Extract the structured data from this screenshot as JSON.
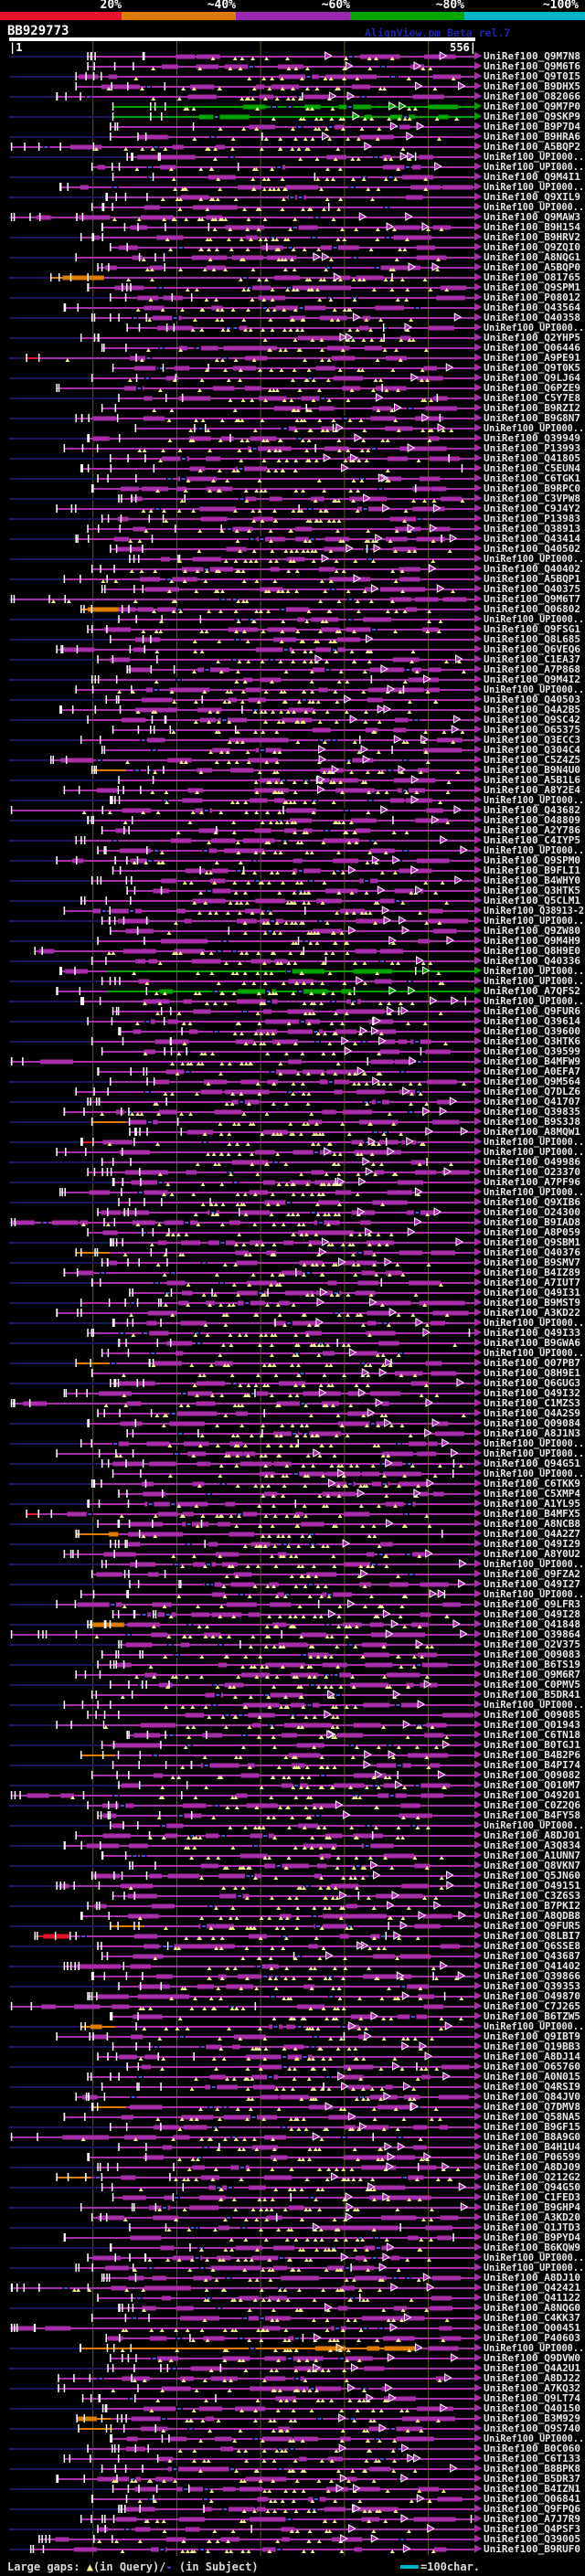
{
  "header": {
    "query_id": "BB929773",
    "app_title": "AlignView.pm Beta rel.7",
    "ruler_start_label": "|1",
    "ruler_end_label": "556|",
    "query_length": 556,
    "gridline_positions": [
      100,
      200,
      300,
      400,
      500
    ]
  },
  "scale": {
    "labels": [
      "20%",
      "~40%",
      "~60%",
      "~80%",
      "~100%"
    ],
    "segment_colors": [
      "#E8112D",
      "#DE7B00",
      "#9B26B2",
      "#00A400",
      "#00B4C8"
    ]
  },
  "legend": {
    "large_gaps_label": "Large gaps: ",
    "gap_query_glyph": "▲",
    "in_query_label": "(in Query)/",
    "gap_subject_glyph": "-",
    "in_subject_label": " (in Subject)",
    "scale_bar_label": "=100char."
  },
  "colors": {
    "background": "#000000",
    "magenta": "#A82DA8",
    "green": "#00A400",
    "orange": "#DE7B00",
    "red": "#E8112D",
    "cyan": "#00B4C8",
    "navy_guide": "#191958",
    "olive_gridline": "#5C5C14",
    "gap_triangle_yellow": "#F0EC8E",
    "subject_gap_blue": "#5050E0",
    "tick_white": "#FFFFFF",
    "label_text": "#E8E8E8"
  },
  "rows": {
    "prefix": "UniRef100_",
    "color_codes": {
      "0": "magenta",
      "1": "green",
      "2": "magenta-then-green",
      "3": "orange-long",
      "4": "orange-lead",
      "5": "red-lead"
    },
    "item_format": [
      "subject_id",
      "alignment_start_query_pos",
      "color_code"
    ],
    "items": [
      [
        "Q9M7N8",
        93,
        0
      ],
      [
        "Q9M6T6",
        93,
        0
      ],
      [
        "Q9T0I5",
        79,
        0
      ],
      [
        "B9DHX5",
        79,
        0
      ],
      [
        "O82066",
        56,
        0
      ],
      [
        "Q9M7P0",
        123,
        1
      ],
      [
        "Q9SKP9",
        123,
        1
      ],
      [
        "B9P7D4",
        120,
        0
      ],
      [
        "B9HRA6",
        120,
        0
      ],
      [
        "A5BQP2",
        2,
        0
      ],
      [
        "UPI000..",
        140,
        0
      ],
      [
        "UPI000..",
        98,
        0
      ],
      [
        "Q9M4I1",
        123,
        0
      ],
      [
        "UPI000..",
        60,
        0
      ],
      [
        "Q9XIL9",
        115,
        0
      ],
      [
        "UPI000..",
        98,
        0
      ],
      [
        "Q9MAW3",
        2,
        0
      ],
      [
        "B9H154",
        110,
        0
      ],
      [
        "B9HRV2",
        85,
        0
      ],
      [
        "Q9ZQI0",
        120,
        0
      ],
      [
        "A8NQG1",
        79,
        0
      ],
      [
        "A5BQP0",
        105,
        0
      ],
      [
        "O81765",
        49,
        4
      ],
      [
        "Q9SPM1",
        93,
        0
      ],
      [
        "P08012",
        120,
        0
      ],
      [
        "Q43564",
        65,
        0
      ],
      [
        "Q40358",
        98,
        0
      ],
      [
        "UPI000..",
        140,
        0
      ],
      [
        "Q2YHP5",
        85,
        0
      ],
      [
        "Q06446",
        110,
        0
      ],
      [
        "A9PE91",
        20,
        5
      ],
      [
        "Q9T0K5",
        123,
        0
      ],
      [
        "Q9LJ64",
        98,
        0
      ],
      [
        "Q6PZE9",
        56,
        0
      ],
      [
        "C5Y7E8",
        130,
        0
      ],
      [
        "B9RZI2",
        110,
        0
      ],
      [
        "B9G8N7",
        79,
        0
      ],
      [
        "UPI000..",
        150,
        0
      ],
      [
        "Q39949",
        93,
        0
      ],
      [
        "P13993",
        65,
        0
      ],
      [
        "Q41805",
        120,
        0
      ],
      [
        "C5EUN4",
        85,
        0
      ],
      [
        "C6TGK1",
        105,
        0
      ],
      [
        "B9RPC0",
        98,
        0
      ],
      [
        "C3VPW8",
        130,
        0
      ],
      [
        "C9J4Y2",
        56,
        0
      ],
      [
        "P13983",
        110,
        0
      ],
      [
        "Q38913",
        93,
        0
      ],
      [
        "Q43414",
        79,
        0
      ],
      [
        "Q40502",
        120,
        0
      ],
      [
        "UPI000..",
        143,
        0
      ],
      [
        "Q40402",
        98,
        0
      ],
      [
        "A5BQP1",
        65,
        0
      ],
      [
        "Q40375",
        110,
        0
      ],
      [
        "Q9M6T7",
        2,
        0
      ],
      [
        "Q06802",
        85,
        4
      ],
      [
        "UPI000..",
        130,
        0
      ],
      [
        "Q9FSG1",
        93,
        0
      ],
      [
        "Q8L685",
        120,
        0
      ],
      [
        "Q6VEQ6",
        56,
        0
      ],
      [
        "C1EA37",
        105,
        0
      ],
      [
        "A7P868",
        140,
        0
      ],
      [
        "Q9M4I2",
        98,
        0
      ],
      [
        "UPI000..",
        79,
        0
      ],
      [
        "Q40503",
        115,
        0
      ],
      [
        "Q4A2B5",
        60,
        0
      ],
      [
        "Q9SC42",
        93,
        0
      ],
      [
        "O65375",
        123,
        0
      ],
      [
        "Q3ECC3",
        85,
        0
      ],
      [
        "Q304C4",
        110,
        0
      ],
      [
        "C5Z4Z5",
        49,
        0
      ],
      [
        "B9N4U0",
        98,
        4
      ],
      [
        "A5B1L6",
        130,
        0
      ],
      [
        "A8Y2E4",
        65,
        0
      ],
      [
        "UPI000..",
        120,
        0
      ],
      [
        "Q43682",
        2,
        0
      ],
      [
        "O48809",
        93,
        0
      ],
      [
        "A2Y786",
        110,
        0
      ],
      [
        "C4IYP5",
        79,
        0
      ],
      [
        "UPI000..",
        105,
        0
      ],
      [
        "Q9SPM0",
        56,
        0
      ],
      [
        "B9FLI1",
        123,
        0
      ],
      [
        "B4WHY0",
        98,
        0
      ],
      [
        "Q3HTK5",
        140,
        0
      ],
      [
        "Q5CLM1",
        85,
        0
      ],
      [
        "Q38913-2",
        65,
        0
      ],
      [
        "UPI000..",
        110,
        0
      ],
      [
        "Q9ZW80",
        120,
        0
      ],
      [
        "Q9M4H9",
        105,
        0
      ],
      [
        "Q8H9E0",
        30,
        0
      ],
      [
        "Q40336",
        98,
        0
      ],
      [
        "UPI000..",
        60,
        2
      ],
      [
        "UPI000..",
        110,
        0
      ],
      [
        "A7QFS2",
        56,
        2
      ],
      [
        "UPI000..",
        85,
        0
      ],
      [
        "Q9FUR6",
        123,
        0
      ],
      [
        "Q39614",
        93,
        0
      ],
      [
        "Q39600",
        130,
        0
      ],
      [
        "Q3HTK6",
        98,
        0
      ],
      [
        "Q39599",
        110,
        0
      ],
      [
        "B4MFW9",
        2,
        0
      ],
      [
        "A0EFA7",
        105,
        0
      ],
      [
        "Q9M564",
        120,
        0
      ],
      [
        "Q7DLZ6",
        79,
        0
      ],
      [
        "Q41707",
        93,
        0
      ],
      [
        "Q39835",
        65,
        0
      ],
      [
        "B9S3J8",
        98,
        4
      ],
      [
        "A8MQW1",
        143,
        0
      ],
      [
        "UPI000..",
        85,
        5
      ],
      [
        "UPI000..",
        56,
        0
      ],
      [
        "O49986",
        110,
        0
      ],
      [
        "O23370",
        93,
        0
      ],
      [
        "A7PF96",
        123,
        0
      ],
      [
        "UPI000..",
        60,
        0
      ],
      [
        "Q9XIB6",
        130,
        0
      ],
      [
        "O24300",
        105,
        0
      ],
      [
        "B9IAD8",
        2,
        0
      ],
      [
        "A8P059",
        93,
        0
      ],
      [
        "Q9SBM1",
        120,
        0
      ],
      [
        "Q40376",
        79,
        4
      ],
      [
        "B9SMV7",
        110,
        0
      ],
      [
        "B4IZ89",
        65,
        0
      ],
      [
        "A7IUT7",
        98,
        0
      ],
      [
        "Q49I31",
        143,
        0
      ],
      [
        "B9MST9",
        85,
        0
      ],
      [
        "A3KD22",
        56,
        0
      ],
      [
        "UPI000..",
        123,
        0
      ],
      [
        "Q49I33",
        93,
        0
      ],
      [
        "B9GWA6",
        130,
        0
      ],
      [
        "UPI000..",
        110,
        0
      ],
      [
        "Q07PB7",
        79,
        4
      ],
      [
        "Q8H9E1",
        98,
        0
      ],
      [
        "Q6GUG3",
        120,
        0
      ],
      [
        "Q49I32",
        65,
        0
      ],
      [
        "C1MZS3",
        2,
        0
      ],
      [
        "Q4A2S9",
        105,
        0
      ],
      [
        "Q09084",
        93,
        0
      ],
      [
        "A8J1N3",
        140,
        0
      ],
      [
        "UPI000..",
        85,
        0
      ],
      [
        "UPI000..",
        56,
        0
      ],
      [
        "Q94G51",
        110,
        0
      ],
      [
        "UPI000..",
        123,
        0
      ],
      [
        "C6TKK9",
        98,
        0
      ],
      [
        "C5XMP4",
        130,
        0
      ],
      [
        "A1YL95",
        93,
        0
      ],
      [
        "B4MFX5",
        20,
        5
      ],
      [
        "A8NCB8",
        105,
        0
      ],
      [
        "Q4A2Z7",
        79,
        4
      ],
      [
        "Q49I29",
        120,
        0
      ],
      [
        "A8Y0U2",
        65,
        0
      ],
      [
        "UPI000..",
        110,
        0
      ],
      [
        "Q9FZA2",
        98,
        0
      ],
      [
        "Q49I27",
        143,
        0
      ],
      [
        "UPI000..",
        85,
        0
      ],
      [
        "Q9LFR3",
        56,
        0
      ],
      [
        "Q49I28",
        123,
        0
      ],
      [
        "Q41848",
        93,
        4
      ],
      [
        "Q39864",
        2,
        0
      ],
      [
        "Q2V375",
        130,
        0
      ],
      [
        "Q09083",
        110,
        0
      ],
      [
        "B6TS19",
        105,
        0
      ],
      [
        "Q9M6R7",
        79,
        0
      ],
      [
        "C0PMV5",
        120,
        0
      ],
      [
        "B5DR41",
        98,
        0
      ],
      [
        "UPI000..",
        65,
        0
      ],
      [
        "Q09085",
        93,
        0
      ],
      [
        "Q01943",
        56,
        0
      ],
      [
        "C6TN18",
        140,
        0
      ],
      [
        "B0TGJ1",
        110,
        0
      ],
      [
        "B4B2P6",
        85,
        4
      ],
      [
        "B4PI74",
        123,
        0
      ],
      [
        "Q09082",
        98,
        0
      ],
      [
        "Q010M7",
        130,
        0
      ],
      [
        "O49201",
        2,
        0
      ],
      [
        "C0Z2Q6",
        93,
        0
      ],
      [
        "B4FY58",
        105,
        0
      ],
      [
        "UPI000..",
        120,
        0
      ],
      [
        "A8DJ01",
        79,
        0
      ],
      [
        "A3Q834",
        65,
        0
      ],
      [
        "A1UNN7",
        110,
        0
      ],
      [
        "Q8VKN7",
        143,
        0
      ],
      [
        "Q5JN60",
        98,
        0
      ],
      [
        "O49151",
        56,
        0
      ],
      [
        "C3Z6S3",
        123,
        0
      ],
      [
        "B7PKI2",
        93,
        0
      ],
      [
        "A8QDB8",
        85,
        0
      ],
      [
        "Q9FUR5",
        120,
        4
      ],
      [
        "Q8LBI7",
        30,
        5
      ],
      [
        "Q6SSE8",
        105,
        0
      ],
      [
        "Q43687",
        110,
        0
      ],
      [
        "Q41402",
        65,
        0
      ],
      [
        "Q39866",
        98,
        0
      ],
      [
        "Q39353",
        130,
        0
      ],
      [
        "O49870",
        93,
        0
      ],
      [
        "C7J265",
        2,
        0
      ],
      [
        "B6TZW5",
        120,
        0
      ],
      [
        "UPI000..",
        85,
        4
      ],
      [
        "Q9IBT9",
        56,
        0
      ],
      [
        "Q19BB3",
        123,
        0
      ],
      [
        "A8DJ14",
        105,
        0
      ],
      [
        "O65760",
        140,
        0
      ],
      [
        "A0N015",
        93,
        0
      ],
      [
        "Q4RSI9",
        110,
        0
      ],
      [
        "Q84JV0",
        79,
        0
      ],
      [
        "Q7DMV8",
        98,
        4
      ],
      [
        "Q58NA5",
        65,
        0
      ],
      [
        "B9GF15",
        120,
        0
      ],
      [
        "B8A9G0",
        2,
        0
      ],
      [
        "B4H1U4",
        130,
        0
      ],
      [
        "P06599",
        93,
        0
      ],
      [
        "A8DJ09",
        105,
        0
      ],
      [
        "Q212G2",
        56,
        4
      ],
      [
        "Q94G50",
        110,
        0
      ],
      [
        "C1FED3",
        123,
        0
      ],
      [
        "B9GHP4",
        85,
        0
      ],
      [
        "A3KD20",
        98,
        0
      ],
      [
        "Q1JTD3",
        143,
        0
      ],
      [
        "B9PYD4",
        65,
        0
      ],
      [
        "B6KQW9",
        120,
        0
      ],
      [
        "UPI000..",
        93,
        0
      ],
      [
        "UPI000..",
        79,
        0
      ],
      [
        "A8DJ10",
        110,
        0
      ],
      [
        "Q42421",
        2,
        0
      ],
      [
        "Q41122",
        105,
        0
      ],
      [
        "A8NQG0",
        130,
        0
      ],
      [
        "C4KK37",
        98,
        0
      ],
      [
        "Q00451",
        2,
        0
      ],
      [
        "P40603",
        115,
        0
      ],
      [
        "UPI000..",
        84,
        3
      ],
      [
        "Q9DVW0",
        120,
        0
      ],
      [
        "Q4A2U1",
        117,
        0
      ],
      [
        "A8DJ22",
        58,
        0
      ],
      [
        "A7KQ32",
        58,
        0
      ],
      [
        "Q9LT74",
        87,
        0
      ],
      [
        "Q40150",
        111,
        0
      ],
      [
        "B3M929",
        80,
        4
      ],
      [
        "Q9S740",
        82,
        4
      ],
      [
        "UPI000..",
        120,
        0
      ],
      [
        "B0C060",
        93,
        0
      ],
      [
        "C6T133",
        65,
        0
      ],
      [
        "B8BPK8",
        110,
        0
      ],
      [
        "B5DR37",
        56,
        0
      ],
      [
        "B4IZN1",
        123,
        0
      ],
      [
        "Q06841",
        98,
        0
      ],
      [
        "Q9FPQ6",
        130,
        0
      ],
      [
        "A7J7R9",
        85,
        0
      ],
      [
        "Q4PSF3",
        105,
        0
      ],
      [
        "Q39005",
        35,
        0
      ],
      [
        "B9RUF0",
        25,
        0
      ]
    ]
  }
}
